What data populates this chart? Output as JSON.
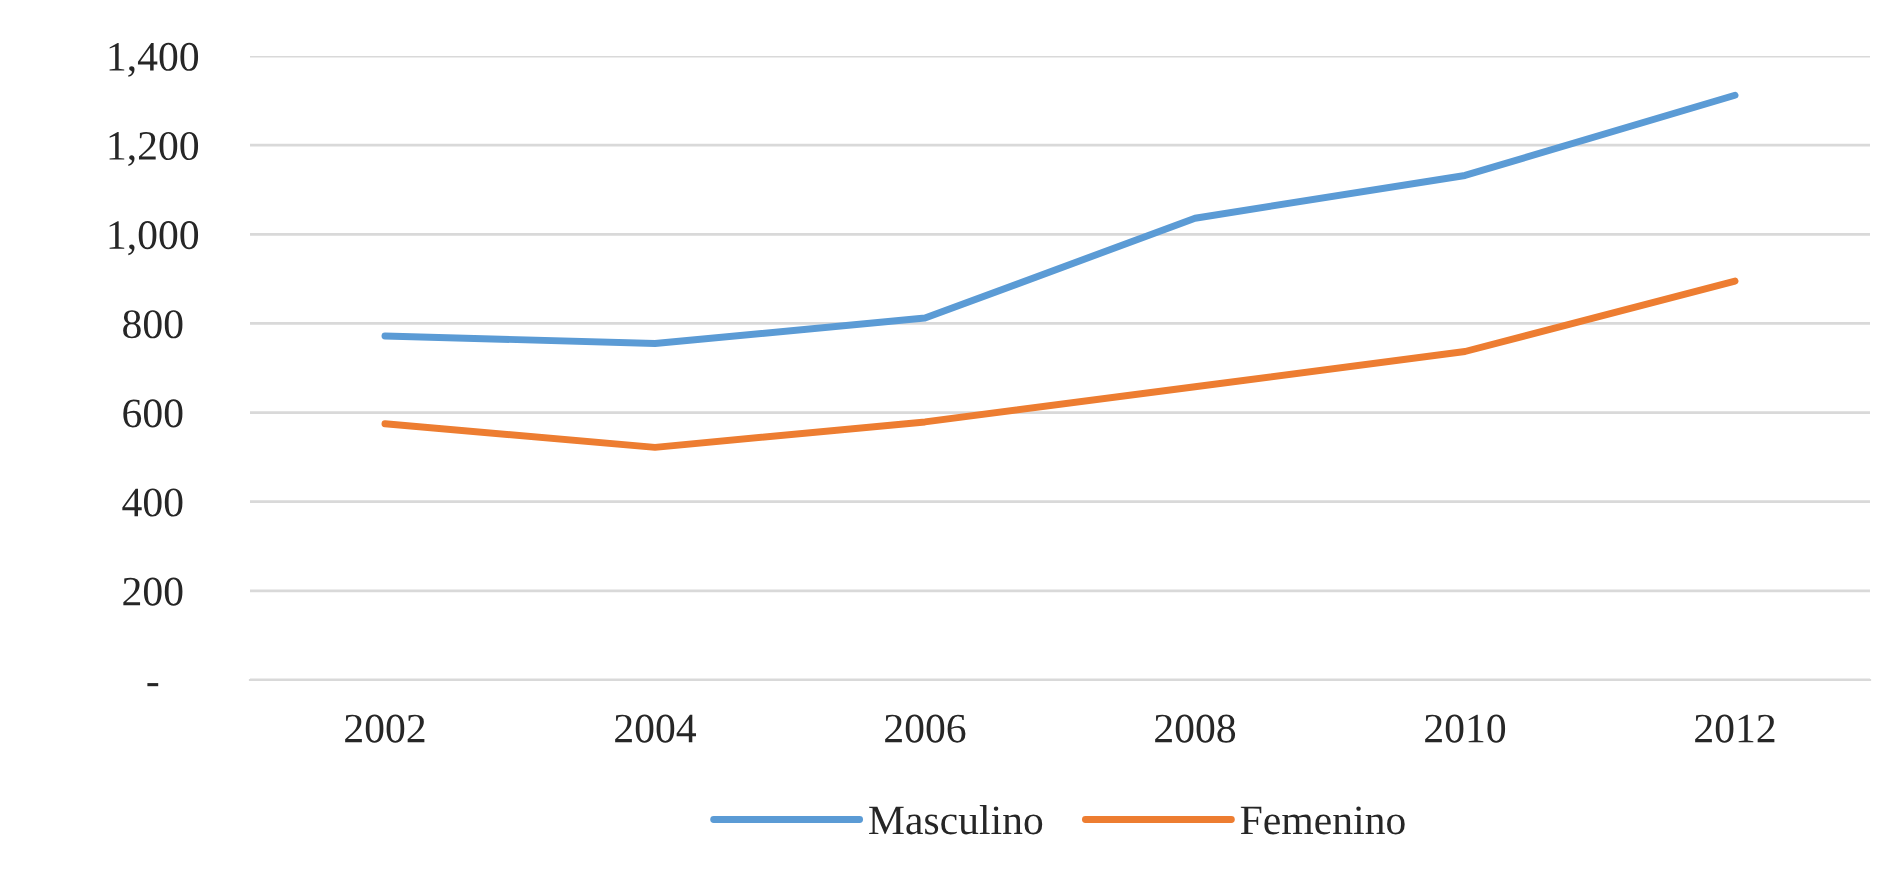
{
  "chart_data": {
    "type": "line",
    "categories": [
      "2002",
      "2004",
      "2006",
      "2008",
      "2010",
      "2012"
    ],
    "series": [
      {
        "name": "Masculino",
        "color": "#5b9bd5",
        "values": [
          772,
          755,
          812,
          1036,
          1132,
          1312
        ]
      },
      {
        "name": "Femenino",
        "color": "#ed7d31",
        "values": [
          575,
          522,
          579,
          658,
          737,
          895
        ]
      }
    ],
    "ylim": [
      0,
      1400
    ],
    "yticks": [
      {
        "value": 0,
        "label": "-"
      },
      200,
      400,
      600,
      800,
      {
        "value": 1000,
        "label": "1,000"
      },
      {
        "value": 1200,
        "label": "1,200"
      },
      {
        "value": 1400,
        "label": "1,400"
      }
    ],
    "grid": "y",
    "legend": "bottom",
    "marker": "none",
    "line_style": "solid"
  }
}
